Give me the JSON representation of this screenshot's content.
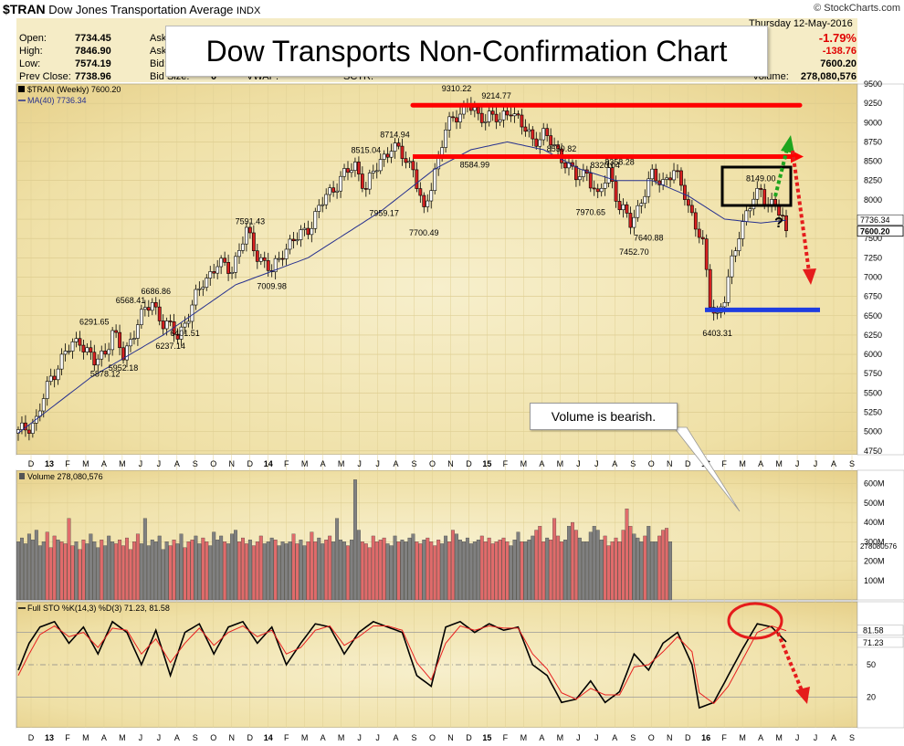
{
  "header": {
    "symbol": "$TRAN",
    "name": "Dow Jones Transportation Average",
    "exchange": "INDX",
    "source": "© StockCharts.com",
    "date": "Thursday  12-May-2016",
    "change_pct": "-1.79%",
    "change_abs": "-138.76",
    "last": "7600.20",
    "volume_label": "Volume:",
    "volume": "278,080,576"
  },
  "quote": {
    "open_label": "Open:",
    "open": "7734.45",
    "high_label": "High:",
    "high": "7846.90",
    "low_label": "Low:",
    "low": "7574.19",
    "prev_label": "Prev Close:",
    "prev": "7738.96",
    "ask_label": "Ask:",
    "ask_size_label": "Ask Size:",
    "bid_label": "Bid:",
    "bid_size_label": "Bid Size:",
    "bid_size": "0",
    "vwap_label": "VWAP:",
    "sctr_label": "SCTR:"
  },
  "banner": "Dow Transports Non-Confirmation Chart",
  "callout": "Volume is bearish.",
  "question_mark": "?",
  "colors": {
    "up": "#ffffff",
    "down": "#d62020",
    "vol_up": "#808080",
    "vol_down": "#e06b6b",
    "ma": "#27318f",
    "resistance": "#ff0000",
    "support": "#1f3de0",
    "target_arrow": "#e51c1c",
    "rally_arrow": "#1ea51e",
    "panel_bg": "#f1e8b8"
  },
  "chart_data": [
    {
      "type": "candlestick",
      "title": "$TRAN (Weekly) 7600.20",
      "legend": [
        {
          "name": "$TRAN (Weekly) 7600.20",
          "color": "#000000"
        },
        {
          "name": "MA(40) 7736.34",
          "color": "#27318f"
        }
      ],
      "ylim": [
        4700,
        9500
      ],
      "y_ticks": [
        4750,
        5000,
        5250,
        5500,
        5750,
        6000,
        6250,
        6500,
        6750,
        7000,
        7250,
        7500,
        7750,
        8000,
        8250,
        8500,
        8750,
        9000,
        9250,
        9500
      ],
      "x_ticks": [
        "D",
        "13",
        "F",
        "M",
        "A",
        "M",
        "J",
        "J",
        "A",
        "S",
        "O",
        "N",
        "D",
        "14",
        "F",
        "M",
        "A",
        "M",
        "J",
        "J",
        "A",
        "S",
        "O",
        "N",
        "D",
        "15",
        "F",
        "M",
        "A",
        "M",
        "J",
        "J",
        "A",
        "S",
        "O",
        "N",
        "D",
        "16",
        "F",
        "M",
        "A",
        "M",
        "J",
        "J",
        "A",
        "S"
      ],
      "close_path": [
        [
          0,
          4980
        ],
        [
          5,
          5150
        ],
        [
          9,
          5700
        ],
        [
          13,
          6020
        ],
        [
          17,
          6200
        ],
        [
          21,
          5880
        ],
        [
          24,
          6040
        ],
        [
          26,
          6300
        ],
        [
          29,
          5960
        ],
        [
          33,
          6420
        ],
        [
          37,
          6680
        ],
        [
          40,
          6400
        ],
        [
          44,
          6250
        ],
        [
          47,
          6500
        ],
        [
          51,
          6950
        ],
        [
          55,
          7150
        ],
        [
          59,
          7120
        ],
        [
          63,
          7580
        ],
        [
          66,
          7300
        ],
        [
          70,
          7050
        ],
        [
          73,
          7350
        ],
        [
          77,
          7500
        ],
        [
          81,
          7700
        ],
        [
          85,
          8050
        ],
        [
          89,
          8270
        ],
        [
          93,
          8450
        ],
        [
          96,
          8150
        ],
        [
          100,
          8520
        ],
        [
          103,
          8680
        ],
        [
          106,
          8580
        ],
        [
          109,
          8420
        ],
        [
          112,
          7800
        ],
        [
          115,
          8400
        ],
        [
          118,
          8900
        ],
        [
          121,
          9100
        ],
        [
          124,
          9250
        ],
        [
          127,
          9050
        ],
        [
          130,
          9120
        ],
        [
          133,
          9000
        ],
        [
          136,
          9200
        ],
        [
          139,
          8950
        ],
        [
          142,
          8780
        ],
        [
          145,
          8850
        ],
        [
          148,
          8680
        ],
        [
          151,
          8500
        ],
        [
          154,
          8280
        ],
        [
          157,
          8380
        ],
        [
          160,
          8000
        ],
        [
          163,
          8400
        ],
        [
          166,
          7900
        ],
        [
          169,
          7700
        ],
        [
          172,
          8000
        ],
        [
          175,
          8300
        ],
        [
          178,
          8250
        ],
        [
          181,
          8350
        ],
        [
          184,
          8100
        ],
        [
          187,
          7650
        ],
        [
          189,
          7400
        ],
        [
          191,
          6700
        ],
        [
          193,
          6500
        ],
        [
          195,
          6700
        ],
        [
          197,
          7200
        ],
        [
          199,
          7600
        ],
        [
          201,
          7800
        ],
        [
          203,
          8000
        ],
        [
          205,
          8149
        ],
        [
          207,
          7950
        ],
        [
          209,
          7900
        ],
        [
          211,
          7750
        ],
        [
          212,
          7600
        ]
      ],
      "ma40_path": [
        [
          0,
          4980
        ],
        [
          20,
          5700
        ],
        [
          40,
          6250
        ],
        [
          60,
          6900
        ],
        [
          80,
          7250
        ],
        [
          100,
          7850
        ],
        [
          115,
          8400
        ],
        [
          125,
          8650
        ],
        [
          135,
          8750
        ],
        [
          145,
          8650
        ],
        [
          155,
          8400
        ],
        [
          165,
          8250
        ],
        [
          175,
          8250
        ],
        [
          185,
          8050
        ],
        [
          195,
          7750
        ],
        [
          205,
          7700
        ],
        [
          212,
          7736.34
        ]
      ],
      "annotations": [
        {
          "label": "6291.65",
          "value": 6291.65
        },
        {
          "label": "5878.12",
          "value": 5878.12
        },
        {
          "label": "6568.41",
          "value": 6568.41
        },
        {
          "label": "5952.18",
          "value": 5952.18
        },
        {
          "label": "6686.86",
          "value": 6686.86
        },
        {
          "label": "6237.14",
          "value": 6237.14
        },
        {
          "label": "6401.51",
          "value": 6401.51
        },
        {
          "label": "7591.43",
          "value": 7591.43
        },
        {
          "label": "7009.98",
          "value": 7009.98
        },
        {
          "label": "8515.04",
          "value": 8515.04
        },
        {
          "label": "7959.17",
          "value": 7959.17
        },
        {
          "label": "8714.94",
          "value": 8714.94
        },
        {
          "label": "7700.49",
          "value": 7700.49
        },
        {
          "label": "9310.22",
          "value": 9310.22
        },
        {
          "label": "8584.99",
          "value": 8584.99
        },
        {
          "label": "9214.77",
          "value": 9214.77
        },
        {
          "label": "8530.82",
          "value": 8530.82
        },
        {
          "label": "7970.65",
          "value": 7970.65
        },
        {
          "label": "8320.04",
          "value": 8320.04
        },
        {
          "label": "8358.28",
          "value": 8358.28
        },
        {
          "label": "7452.70",
          "value": 7452.7
        },
        {
          "label": "7640.88",
          "value": 7640.88
        },
        {
          "label": "6403.31",
          "value": 6403.31
        },
        {
          "label": "8149.00",
          "value": 8149.0
        }
      ],
      "levels": [
        {
          "kind": "resistance",
          "value": 9225
        },
        {
          "kind": "resistance",
          "value": 8560
        },
        {
          "kind": "support",
          "value": 6575
        }
      ],
      "right_labels": [
        "7736.34",
        "7600.20"
      ]
    },
    {
      "type": "bar",
      "title": "Volume 278,080,576",
      "ylim": [
        0,
        650
      ],
      "y_ticks_label": [
        "100M",
        "200M",
        "300M",
        "400M",
        "500M",
        "600M"
      ],
      "y_ticks": [
        100,
        200,
        300,
        400,
        500,
        600
      ],
      "right_label": "278080576",
      "values_m": [
        300,
        320,
        290,
        340,
        310,
        360,
        280,
        300,
        350,
        270,
        330,
        310,
        300,
        290,
        420,
        280,
        300,
        260,
        310,
        290,
        340,
        300,
        270,
        310,
        280,
        330,
        300,
        290,
        310,
        280,
        320,
        260,
        300,
        340,
        290,
        420,
        280,
        310,
        300,
        330,
        260,
        300,
        280,
        310,
        290,
        340,
        270,
        300,
        310,
        330,
        290,
        320,
        300,
        280,
        350,
        310,
        330,
        300,
        290,
        340,
        360,
        300,
        320,
        290,
        310,
        280,
        300,
        330,
        290,
        300,
        320,
        310,
        280,
        300,
        290,
        300,
        340,
        290,
        310,
        280,
        300,
        350,
        300,
        320,
        290,
        310,
        330,
        300,
        420,
        310,
        300,
        280,
        310,
        620,
        360,
        300,
        290,
        270,
        330,
        300,
        310,
        320,
        290,
        280,
        330,
        300,
        310,
        300,
        320,
        340,
        300,
        290,
        310,
        320,
        300,
        280,
        310,
        290,
        330,
        300,
        360,
        340,
        310,
        300,
        320,
        290,
        300,
        310,
        330,
        300,
        320,
        290,
        300,
        310,
        320,
        300,
        280,
        310,
        350,
        300,
        300,
        310,
        330,
        360,
        380,
        300,
        320,
        310,
        420,
        330,
        300,
        310,
        380,
        400,
        360,
        320,
        300,
        300,
        350,
        380,
        360,
        310,
        330,
        280,
        300,
        320,
        300,
        360,
        470,
        380,
        340,
        320,
        300,
        330,
        380,
        300,
        300,
        330,
        360,
        370,
        300
      ],
      "direction": "alternating"
    },
    {
      "type": "line",
      "title": "Full STO %K(14,3) %D(3) 71.23, 81.58",
      "ylim": [
        0,
        100
      ],
      "y_ticks": [
        20,
        50,
        80
      ],
      "right_labels": [
        "81.58",
        "71.23"
      ],
      "series": [
        {
          "name": "%K(14,3)",
          "color": "#000000",
          "points": [
            [
              0,
              45
            ],
            [
              3,
              70
            ],
            [
              6,
              85
            ],
            [
              10,
              90
            ],
            [
              14,
              70
            ],
            [
              18,
              85
            ],
            [
              22,
              60
            ],
            [
              26,
              90
            ],
            [
              30,
              80
            ],
            [
              34,
              50
            ],
            [
              38,
              82
            ],
            [
              42,
              40
            ],
            [
              46,
              80
            ],
            [
              50,
              88
            ],
            [
              54,
              60
            ],
            [
              58,
              85
            ],
            [
              62,
              90
            ],
            [
              66,
              70
            ],
            [
              70,
              85
            ],
            [
              74,
              50
            ],
            [
              78,
              70
            ],
            [
              82,
              88
            ],
            [
              86,
              85
            ],
            [
              90,
              60
            ],
            [
              94,
              80
            ],
            [
              98,
              90
            ],
            [
              102,
              85
            ],
            [
              106,
              80
            ],
            [
              110,
              40
            ],
            [
              114,
              30
            ],
            [
              118,
              85
            ],
            [
              122,
              90
            ],
            [
              126,
              80
            ],
            [
              130,
              88
            ],
            [
              134,
              82
            ],
            [
              138,
              85
            ],
            [
              142,
              50
            ],
            [
              146,
              40
            ],
            [
              150,
              15
            ],
            [
              154,
              18
            ],
            [
              158,
              35
            ],
            [
              162,
              15
            ],
            [
              166,
              25
            ],
            [
              170,
              60
            ],
            [
              174,
              45
            ],
            [
              178,
              70
            ],
            [
              182,
              80
            ],
            [
              186,
              50
            ],
            [
              188,
              10
            ],
            [
              192,
              15
            ],
            [
              196,
              40
            ],
            [
              200,
              65
            ],
            [
              204,
              88
            ],
            [
              208,
              85
            ],
            [
              212,
              71.23
            ]
          ]
        },
        {
          "name": "%D(3)",
          "color": "#e82020",
          "points": [
            [
              0,
              40
            ],
            [
              3,
              60
            ],
            [
              6,
              78
            ],
            [
              10,
              86
            ],
            [
              14,
              76
            ],
            [
              18,
              80
            ],
            [
              22,
              66
            ],
            [
              26,
              84
            ],
            [
              30,
              82
            ],
            [
              34,
              60
            ],
            [
              38,
              74
            ],
            [
              42,
              52
            ],
            [
              46,
              70
            ],
            [
              50,
              84
            ],
            [
              54,
              68
            ],
            [
              58,
              80
            ],
            [
              62,
              86
            ],
            [
              66,
              76
            ],
            [
              70,
              82
            ],
            [
              74,
              60
            ],
            [
              78,
              66
            ],
            [
              82,
              82
            ],
            [
              86,
              86
            ],
            [
              90,
              68
            ],
            [
              94,
              76
            ],
            [
              98,
              86
            ],
            [
              102,
              86
            ],
            [
              106,
              82
            ],
            [
              110,
              52
            ],
            [
              114,
              36
            ],
            [
              118,
              70
            ],
            [
              122,
              86
            ],
            [
              126,
              82
            ],
            [
              130,
              86
            ],
            [
              134,
              84
            ],
            [
              138,
              84
            ],
            [
              142,
              60
            ],
            [
              146,
              46
            ],
            [
              150,
              24
            ],
            [
              154,
              18
            ],
            [
              158,
              28
            ],
            [
              162,
              22
            ],
            [
              166,
              22
            ],
            [
              170,
              48
            ],
            [
              174,
              50
            ],
            [
              178,
              62
            ],
            [
              182,
              76
            ],
            [
              186,
              62
            ],
            [
              188,
              24
            ],
            [
              192,
              14
            ],
            [
              196,
              30
            ],
            [
              200,
              55
            ],
            [
              204,
              80
            ],
            [
              208,
              86
            ],
            [
              212,
              81.58
            ]
          ]
        }
      ]
    }
  ]
}
